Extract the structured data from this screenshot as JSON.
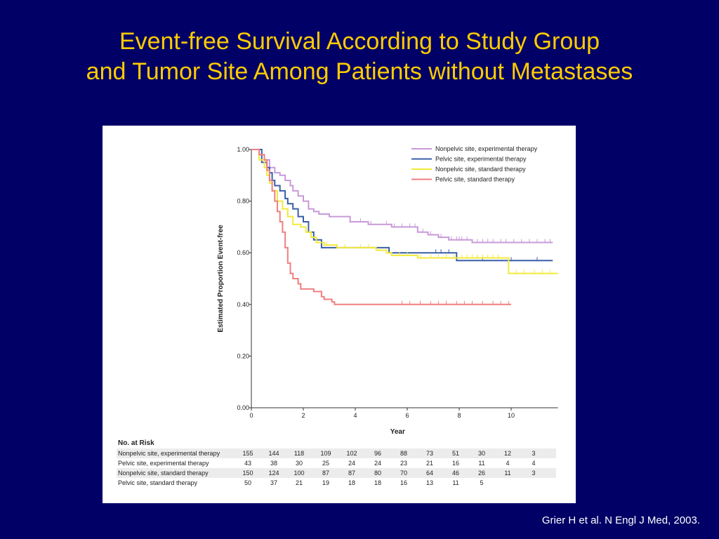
{
  "title": {
    "line1": "Event-free Survival According to Study Group",
    "line2": "and Tumor Site Among Patients without Metastases"
  },
  "citation": "Grier H et al. N Engl J Med, 2003.",
  "colors": {
    "background": "#000066",
    "title": "#ffcc00",
    "nonpelvic_experimental": "#c89ad8",
    "pelvic_experimental": "#3a5fa8",
    "nonpelvic_standard": "#f2ea3a",
    "pelvic_standard": "#f07f7f"
  },
  "chart_data": {
    "type": "line",
    "step": true,
    "xlabel": "Year",
    "ylabel": "Estimated Proportion Event-free",
    "xlim": [
      0,
      11.8
    ],
    "ylim": [
      0,
      1.0
    ],
    "x_ticks": [
      "0",
      "2",
      "4",
      "6",
      "8",
      "10"
    ],
    "x_tick_values": [
      0,
      2,
      4,
      6,
      8,
      10
    ],
    "y_ticks": [
      "0.00",
      "0.20",
      "0.40",
      "0.60",
      "0.80",
      "1.00"
    ],
    "y_tick_values": [
      0,
      0.2,
      0.4,
      0.6,
      0.8,
      1.0
    ],
    "legend_position": "top-right",
    "series": [
      {
        "name": "Nonpelvic site, experimental therapy",
        "color": "#c89ad8",
        "points": [
          [
            0,
            1.0
          ],
          [
            0.3,
            1.0
          ],
          [
            0.3,
            0.98
          ],
          [
            0.5,
            0.96
          ],
          [
            0.7,
            0.93
          ],
          [
            0.9,
            0.91
          ],
          [
            1.1,
            0.9
          ],
          [
            1.3,
            0.88
          ],
          [
            1.5,
            0.86
          ],
          [
            1.6,
            0.84
          ],
          [
            1.8,
            0.82
          ],
          [
            2.0,
            0.8
          ],
          [
            2.2,
            0.77
          ],
          [
            2.4,
            0.76
          ],
          [
            2.6,
            0.75
          ],
          [
            3.0,
            0.74
          ],
          [
            3.8,
            0.72
          ],
          [
            4.5,
            0.71
          ],
          [
            5.4,
            0.7
          ],
          [
            6.4,
            0.68
          ],
          [
            6.8,
            0.67
          ],
          [
            7.2,
            0.66
          ],
          [
            7.6,
            0.65
          ],
          [
            8.5,
            0.64
          ],
          [
            11.6,
            0.64
          ]
        ],
        "censor_x": [
          4.2,
          4.6,
          5.2,
          5.5,
          5.8,
          6.1,
          6.3,
          6.6,
          6.9,
          7.3,
          7.6,
          7.7,
          7.9,
          8.0,
          8.1,
          8.3,
          8.7,
          8.9,
          9.1,
          9.3,
          9.6,
          9.8,
          10.1,
          10.4,
          10.7,
          11.0,
          11.3,
          11.5
        ]
      },
      {
        "name": "Pelvic site, experimental therapy",
        "color": "#3a5fa8",
        "points": [
          [
            0,
            1.0
          ],
          [
            0.4,
            1.0
          ],
          [
            0.4,
            0.95
          ],
          [
            0.6,
            0.93
          ],
          [
            0.7,
            0.91
          ],
          [
            0.8,
            0.88
          ],
          [
            0.9,
            0.86
          ],
          [
            1.1,
            0.84
          ],
          [
            1.3,
            0.81
          ],
          [
            1.4,
            0.79
          ],
          [
            1.6,
            0.77
          ],
          [
            1.8,
            0.74
          ],
          [
            2.0,
            0.72
          ],
          [
            2.2,
            0.68
          ],
          [
            2.4,
            0.65
          ],
          [
            2.7,
            0.62
          ],
          [
            5.3,
            0.6
          ],
          [
            7.9,
            0.57
          ],
          [
            11.6,
            0.57
          ]
        ],
        "censor_x": [
          7.1,
          7.3,
          7.6,
          8.9,
          10.0,
          11.0
        ]
      },
      {
        "name": "Nonpelvic site, standard therapy",
        "color": "#f2ea3a",
        "points": [
          [
            0,
            1.0
          ],
          [
            0.3,
            1.0
          ],
          [
            0.3,
            0.96
          ],
          [
            0.5,
            0.93
          ],
          [
            0.6,
            0.9
          ],
          [
            0.7,
            0.87
          ],
          [
            0.8,
            0.84
          ],
          [
            1.0,
            0.8
          ],
          [
            1.2,
            0.77
          ],
          [
            1.4,
            0.74
          ],
          [
            1.6,
            0.71
          ],
          [
            1.9,
            0.7
          ],
          [
            2.1,
            0.68
          ],
          [
            2.3,
            0.66
          ],
          [
            2.5,
            0.64
          ],
          [
            2.8,
            0.63
          ],
          [
            3.3,
            0.62
          ],
          [
            4.8,
            0.61
          ],
          [
            5.2,
            0.6
          ],
          [
            5.4,
            0.59
          ],
          [
            6.4,
            0.58
          ],
          [
            9.9,
            0.55
          ],
          [
            9.9,
            0.52
          ],
          [
            11.8,
            0.52
          ]
        ],
        "censor_x": [
          2.9,
          3.6,
          4.2,
          4.5,
          5.4,
          5.7,
          6.0,
          6.5,
          6.9,
          7.2,
          7.5,
          7.8,
          8.1,
          8.3,
          8.5,
          8.7,
          8.9,
          9.1,
          9.3,
          9.5,
          10.2,
          10.5,
          10.9,
          11.2,
          11.5
        ]
      },
      {
        "name": "Pelvic site, standard therapy",
        "color": "#f07f7f",
        "points": [
          [
            0,
            1.0
          ],
          [
            0.3,
            1.0
          ],
          [
            0.3,
            0.98
          ],
          [
            0.5,
            0.96
          ],
          [
            0.6,
            0.92
          ],
          [
            0.7,
            0.88
          ],
          [
            0.8,
            0.84
          ],
          [
            0.9,
            0.8
          ],
          [
            1.0,
            0.76
          ],
          [
            1.1,
            0.72
          ],
          [
            1.2,
            0.68
          ],
          [
            1.3,
            0.62
          ],
          [
            1.4,
            0.56
          ],
          [
            1.5,
            0.52
          ],
          [
            1.6,
            0.5
          ],
          [
            1.8,
            0.48
          ],
          [
            1.9,
            0.46
          ],
          [
            2.3,
            0.46
          ],
          [
            2.4,
            0.45
          ],
          [
            2.7,
            0.43
          ],
          [
            2.8,
            0.42
          ],
          [
            3.1,
            0.41
          ],
          [
            3.2,
            0.4
          ],
          [
            10.0,
            0.4
          ]
        ],
        "censor_x": [
          5.8,
          6.1,
          6.5,
          6.9,
          7.2,
          7.5,
          7.9,
          8.2,
          8.5,
          8.9,
          9.3,
          9.6,
          9.9
        ]
      }
    ],
    "risk_table": {
      "header": "No. at Risk",
      "rows": [
        {
          "label": "Nonpelvic site, experimental therapy",
          "values": [
            "155",
            "144",
            "118",
            "109",
            "102",
            "96",
            "88",
            "73",
            "51",
            "30",
            "12",
            "3"
          ]
        },
        {
          "label": "Pelvic site, experimental therapy",
          "values": [
            "43",
            "38",
            "30",
            "25",
            "24",
            "24",
            "23",
            "21",
            "16",
            "11",
            "4",
            "4"
          ]
        },
        {
          "label": "Nonpelvic site, standard therapy",
          "values": [
            "150",
            "124",
            "100",
            "87",
            "87",
            "80",
            "70",
            "64",
            "46",
            "26",
            "11",
            "3"
          ]
        },
        {
          "label": "Pelvic site, standard therapy",
          "values": [
            "50",
            "37",
            "21",
            "19",
            "18",
            "18",
            "16",
            "13",
            "11",
            "5",
            "",
            ""
          ]
        }
      ]
    }
  }
}
